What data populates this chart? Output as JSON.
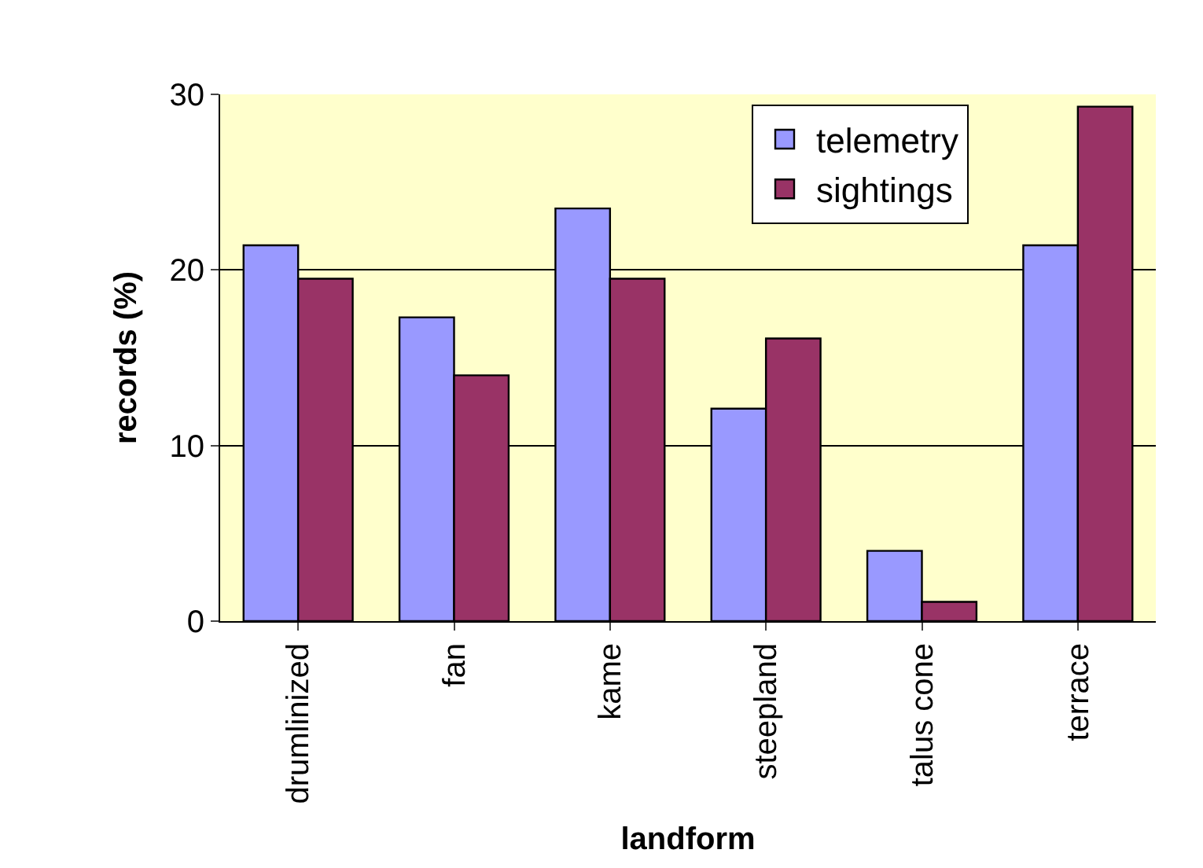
{
  "chart_data": {
    "type": "bar",
    "xlabel": "landform",
    "ylabel": "records (%)",
    "categories": [
      "drumlinized",
      "fan",
      "kame",
      "steepland",
      "talus cone",
      "terrace"
    ],
    "series": [
      {
        "name": "telemetry",
        "color": "#9999ff",
        "values": [
          21.4,
          17.3,
          23.5,
          12.1,
          4.0,
          21.4
        ]
      },
      {
        "name": "sightings",
        "color": "#993366",
        "values": [
          19.5,
          14.0,
          19.5,
          16.1,
          1.1,
          29.3
        ]
      }
    ],
    "ylim": [
      0,
      30
    ],
    "yticks": [
      0,
      10,
      20,
      30
    ],
    "grid": "y",
    "legend": "top right"
  }
}
